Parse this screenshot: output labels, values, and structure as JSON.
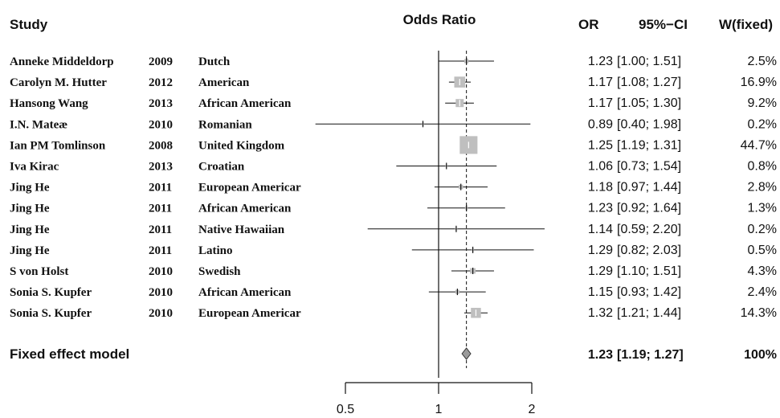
{
  "headers": {
    "study": "Study",
    "plot_title": "Odds Ratio",
    "or": "OR",
    "ci": "95%−CI",
    "weight": "W(fixed)"
  },
  "chart_data": {
    "type": "forest",
    "scale": "log",
    "reference_line": 1,
    "pooled_line": 1.23,
    "x_ticks": [
      {
        "value": 0.5,
        "label": "0.5"
      },
      {
        "value": 1,
        "label": "1"
      },
      {
        "value": 2,
        "label": "2"
      }
    ],
    "studies": [
      {
        "author": "Anneke Middeldorp",
        "year": "2009",
        "population": "Dutch",
        "or": 1.23,
        "lower": 1.0,
        "upper": 1.51,
        "or_text": "1.23",
        "ci_text": "[1.00; 1.51]",
        "weight_text": "2.5%",
        "weight": 2.5
      },
      {
        "author": "Carolyn M. Hutter",
        "year": "2012",
        "population": "American",
        "or": 1.17,
        "lower": 1.08,
        "upper": 1.27,
        "or_text": "1.17",
        "ci_text": "[1.08; 1.27]",
        "weight_text": "16.9%",
        "weight": 16.9
      },
      {
        "author": "Hansong Wang",
        "year": "2013",
        "population": "African American",
        "or": 1.17,
        "lower": 1.05,
        "upper": 1.3,
        "or_text": "1.17",
        "ci_text": "[1.05; 1.30]",
        "weight_text": "9.2%",
        "weight": 9.2
      },
      {
        "author": "I.N. Mateæ",
        "year": "2010",
        "population": "Romanian",
        "or": 0.89,
        "lower": 0.4,
        "upper": 1.98,
        "or_text": "0.89",
        "ci_text": "[0.40; 1.98]",
        "weight_text": "0.2%",
        "weight": 0.2
      },
      {
        "author": "Ian PM Tomlinson",
        "year": "2008",
        "population": "United Kingdom",
        "or": 1.25,
        "lower": 1.19,
        "upper": 1.31,
        "or_text": "1.25",
        "ci_text": "[1.19; 1.31]",
        "weight_text": "44.7%",
        "weight": 44.7
      },
      {
        "author": "Iva Kirac",
        "year": "2013",
        "population": "Croatian",
        "or": 1.06,
        "lower": 0.73,
        "upper": 1.54,
        "or_text": "1.06",
        "ci_text": "[0.73; 1.54]",
        "weight_text": "0.8%",
        "weight": 0.8
      },
      {
        "author": "Jing He",
        "year": "2011",
        "population": "European Americar",
        "or": 1.18,
        "lower": 0.97,
        "upper": 1.44,
        "or_text": "1.18",
        "ci_text": "[0.97; 1.44]",
        "weight_text": "2.8%",
        "weight": 2.8
      },
      {
        "author": "Jing He",
        "year": "2011",
        "population": "African American",
        "or": 1.23,
        "lower": 0.92,
        "upper": 1.64,
        "or_text": "1.23",
        "ci_text": "[0.92; 1.64]",
        "weight_text": "1.3%",
        "weight": 1.3
      },
      {
        "author": "Jing He",
        "year": "2011",
        "population": "Native Hawaiian",
        "or": 1.14,
        "lower": 0.59,
        "upper": 2.2,
        "or_text": "1.14",
        "ci_text": "[0.59; 2.20]",
        "weight_text": "0.2%",
        "weight": 0.2
      },
      {
        "author": "Jing He",
        "year": "2011",
        "population": "Latino",
        "or": 1.29,
        "lower": 0.82,
        "upper": 2.03,
        "or_text": "1.29",
        "ci_text": "[0.82; 2.03]",
        "weight_text": "0.5%",
        "weight": 0.5
      },
      {
        "author": "S von Holst",
        "year": "2010",
        "population": "Swedish",
        "or": 1.29,
        "lower": 1.1,
        "upper": 1.51,
        "or_text": "1.29",
        "ci_text": "[1.10; 1.51]",
        "weight_text": "4.3%",
        "weight": 4.3
      },
      {
        "author": "Sonia S. Kupfer",
        "year": "2010",
        "population": "African American",
        "or": 1.15,
        "lower": 0.93,
        "upper": 1.42,
        "or_text": "1.15",
        "ci_text": "[0.93; 1.42]",
        "weight_text": "2.4%",
        "weight": 2.4
      },
      {
        "author": "Sonia S. Kupfer",
        "year": "2010",
        "population": "European Americar",
        "or": 1.32,
        "lower": 1.21,
        "upper": 1.44,
        "or_text": "1.32",
        "ci_text": "[1.21; 1.44]",
        "weight_text": "14.3%",
        "weight": 14.3
      }
    ],
    "pooled": {
      "label": "Fixed effect model",
      "or": 1.23,
      "lower": 1.19,
      "upper": 1.27,
      "or_text": "1.23",
      "ci_text": "[1.19; 1.27]",
      "weight_text": "100%"
    }
  }
}
